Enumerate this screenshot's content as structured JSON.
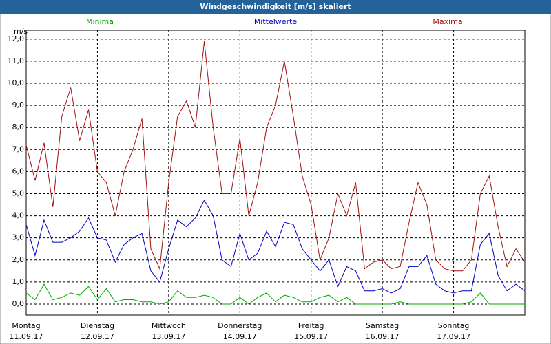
{
  "chart_data": {
    "type": "line",
    "title": "Windgeschwindigkeit [m/s] skaliert",
    "y_label": "m/s",
    "x": [
      0,
      3,
      6,
      9,
      12,
      15,
      18,
      21,
      24,
      27,
      30,
      33,
      36,
      39,
      42,
      45,
      48,
      51,
      54,
      57,
      60,
      63,
      66,
      69,
      72,
      75,
      78,
      81,
      84,
      87,
      90,
      93,
      96,
      99,
      102,
      105,
      108,
      111,
      114,
      117,
      120,
      123,
      126,
      129,
      132,
      135,
      138,
      141,
      144,
      147,
      150,
      153,
      156,
      159,
      162,
      165,
      168
    ],
    "xlim": [
      0,
      168
    ],
    "xticks": [
      {
        "value": 0,
        "label": "Montag"
      },
      {
        "value": 24,
        "label": "Dienstag"
      },
      {
        "value": 48,
        "label": "Mittwoch"
      },
      {
        "value": 72,
        "label": "Donnerstag"
      },
      {
        "value": 96,
        "label": "Freitag"
      },
      {
        "value": 120,
        "label": "Samstag"
      },
      {
        "value": 144,
        "label": "Sonntag"
      }
    ],
    "xtick_dates": [
      "11.09.17",
      "12.09.17",
      "13.09.17",
      "14.09.17",
      "15.09.17",
      "16.09.17",
      "17.09.17"
    ],
    "ylim": [
      -0.5,
      12.4
    ],
    "yticks": [
      {
        "value": 0,
        "label": "0,0"
      },
      {
        "value": 1,
        "label": "1,0"
      },
      {
        "value": 2,
        "label": "2,0"
      },
      {
        "value": 3,
        "label": "3,0"
      },
      {
        "value": 4,
        "label": "4,0"
      },
      {
        "value": 5,
        "label": "5,0"
      },
      {
        "value": 6,
        "label": "6,0"
      },
      {
        "value": 7,
        "label": "7,0"
      },
      {
        "value": 8,
        "label": "8,0"
      },
      {
        "value": 9,
        "label": "9,0"
      },
      {
        "value": 10,
        "label": "10,0"
      },
      {
        "value": 11,
        "label": "11,0"
      },
      {
        "value": 12,
        "label": "12,0"
      }
    ],
    "grid": true,
    "series": [
      {
        "name": "Minima",
        "color": "#00aa00",
        "values": [
          0.5,
          0.2,
          0.9,
          0.2,
          0.3,
          0.5,
          0.4,
          0.8,
          0.2,
          0.7,
          0.1,
          0.2,
          0.2,
          0.1,
          0.1,
          0,
          0.1,
          0.6,
          0.3,
          0.3,
          0.4,
          0.3,
          0,
          0,
          0.3,
          0,
          0.3,
          0.5,
          0.1,
          0.4,
          0.3,
          0.1,
          0.1,
          0.3,
          0.4,
          0.1,
          0.3,
          0,
          0,
          0,
          0,
          0,
          0.1,
          0,
          0,
          0,
          0,
          0,
          0,
          0,
          0.1,
          0.5,
          0,
          0,
          0,
          0,
          0
        ]
      },
      {
        "name": "Mittelwerte",
        "color": "#0000c0",
        "values": [
          3.6,
          2.2,
          3.8,
          2.8,
          2.8,
          3.0,
          3.3,
          3.9,
          3.0,
          2.9,
          1.9,
          2.7,
          3.0,
          3.2,
          1.5,
          1.0,
          2.5,
          3.8,
          3.5,
          3.9,
          4.7,
          4.0,
          2.0,
          1.7,
          3.2,
          2.0,
          2.3,
          3.3,
          2.6,
          3.7,
          3.6,
          2.5,
          2.0,
          1.5,
          2.0,
          0.8,
          1.7,
          1.5,
          0.6,
          0.6,
          0.7,
          0.5,
          0.7,
          1.7,
          1.7,
          2.2,
          0.9,
          0.6,
          0.5,
          0.6,
          0.6,
          2.7,
          3.2,
          1.3,
          0.6,
          0.9,
          0.6
        ]
      },
      {
        "name": "Maxima",
        "color": "#a01010",
        "values": [
          7.2,
          5.6,
          7.3,
          4.4,
          8.5,
          9.8,
          7.4,
          8.8,
          6.0,
          5.5,
          4.0,
          6.0,
          7.0,
          8.4,
          2.5,
          1.6,
          5.5,
          8.5,
          9.2,
          8.0,
          11.9,
          8.0,
          5.0,
          5.0,
          7.5,
          4.0,
          5.5,
          8.0,
          9.0,
          11.0,
          8.5,
          5.8,
          4.5,
          2.0,
          3.0,
          5.0,
          4.0,
          5.5,
          1.6,
          1.9,
          2.0,
          1.6,
          1.7,
          3.7,
          5.5,
          4.5,
          2.0,
          1.6,
          1.5,
          1.5,
          2.0,
          5.0,
          5.8,
          3.5,
          1.7,
          2.5,
          1.9
        ]
      }
    ]
  }
}
